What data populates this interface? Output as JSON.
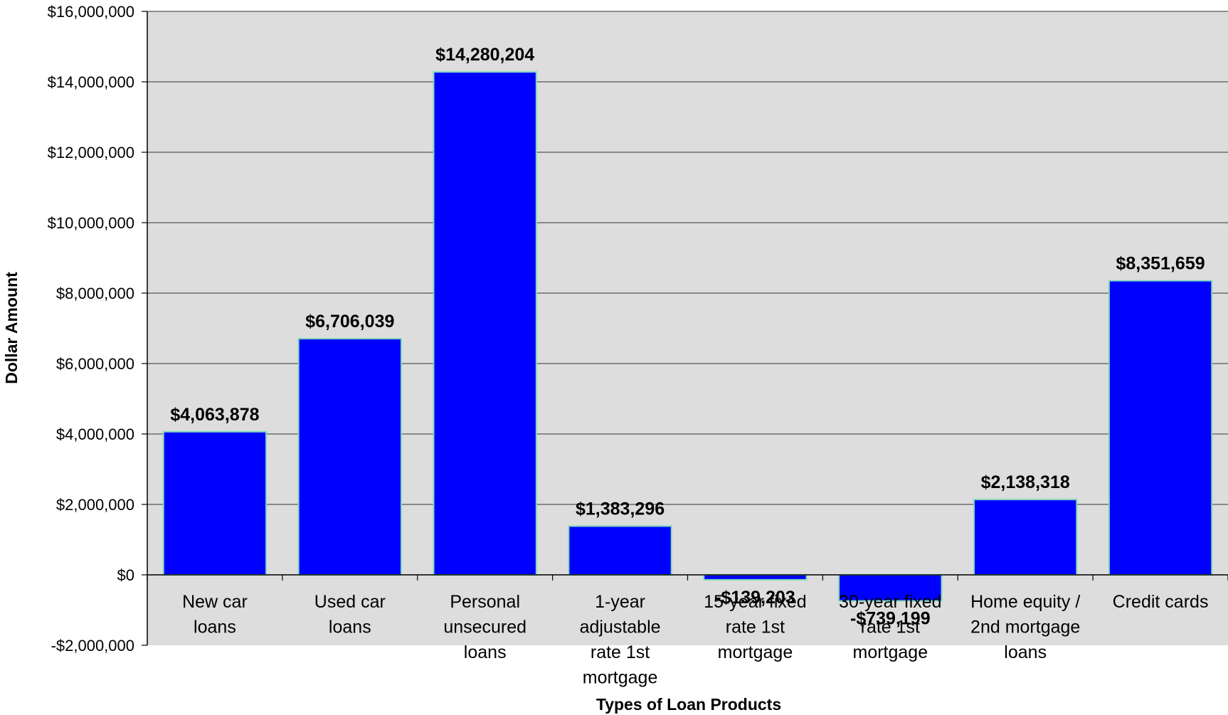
{
  "chart_data": {
    "type": "bar",
    "title": "",
    "xlabel": "Types of Loan Products",
    "ylabel": "Dollar Amount",
    "ylim": [
      -2000000,
      16000000
    ],
    "yticks": [
      -2000000,
      0,
      2000000,
      4000000,
      6000000,
      8000000,
      10000000,
      12000000,
      14000000,
      16000000
    ],
    "ytick_labels": [
      "-$2,000,000",
      "$0",
      "$2,000,000",
      "$4,000,000",
      "$6,000,000",
      "$8,000,000",
      "$10,000,000",
      "$12,000,000",
      "$14,000,000",
      "$16,000,000"
    ],
    "categories": [
      [
        "New car",
        "loans"
      ],
      [
        "Used car",
        "loans"
      ],
      [
        "Personal",
        "unsecured",
        "loans"
      ],
      [
        "1-year",
        "adjustable",
        "rate 1st",
        "mortgage"
      ],
      [
        "15-year fixed",
        "rate 1st",
        "mortgage"
      ],
      [
        "30-year fixed",
        "rate 1st",
        "mortgage"
      ],
      [
        "Home equity /",
        "2nd mortgage",
        "loans"
      ],
      [
        "Credit cards"
      ]
    ],
    "values": [
      4063878,
      6706039,
      14280204,
      1383296,
      -139203,
      -739199,
      2138318,
      8351659
    ],
    "data_labels": [
      "$4,063,878",
      "$6,706,039",
      "$14,280,204",
      "$1,383,296",
      "-$139,203",
      "-$739,199",
      "$2,138,318",
      "$8,351,659"
    ],
    "grid": true,
    "legend": "none",
    "colors": {
      "bar_fill": "#0000ff",
      "bar_stroke": "#7fd8b8",
      "plot_bg": "#dddddd",
      "gridline": "#555555"
    }
  }
}
